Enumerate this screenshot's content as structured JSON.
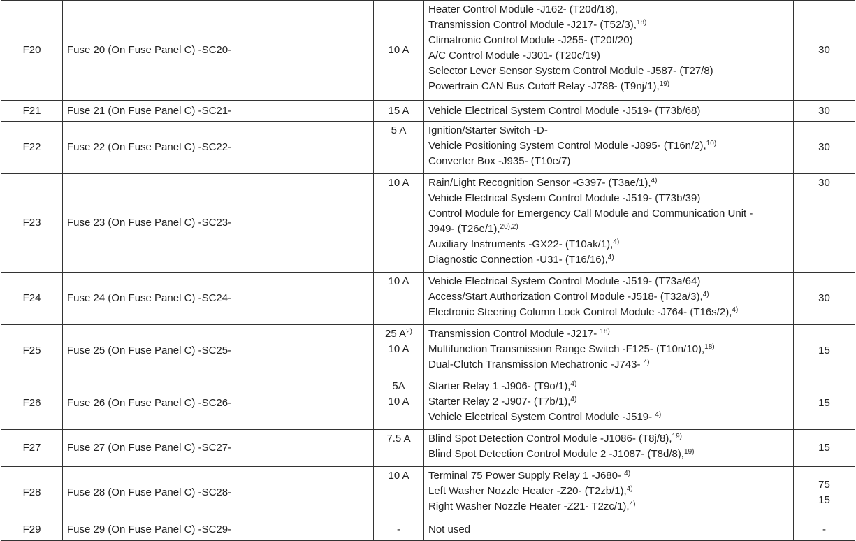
{
  "rows": [
    {
      "fuse": "F20",
      "name": "Fuse 20 (On Fuse Panel C) -SC20-",
      "amps": [
        {
          "text": "10 A"
        }
      ],
      "components": [
        {
          "text": "Heater Control Module -J162- (T20d/18),"
        },
        {
          "text": "Transmission Control Module -J217- (T52/3),",
          "sup": "18)"
        },
        {
          "text": "Climatronic Control Module -J255- (T20f/20)"
        },
        {
          "text": "A/C Control Module -J301- (T20c/19)"
        },
        {
          "text": "Selector Lever Sensor System Control Module -J587- (T27/8)"
        },
        {
          "text": "Powertrain CAN Bus Cutoff Relay -J788- (T9nj/1),",
          "sup": "19)"
        }
      ],
      "terminal": [
        "30"
      ]
    },
    {
      "fuse": "F21",
      "name": "Fuse 21 (On Fuse Panel C) -SC21-",
      "amps": [
        {
          "text": "15 A"
        }
      ],
      "components": [
        {
          "text": "Vehicle Electrical System Control Module -J519- (T73b/68)"
        }
      ],
      "terminal": [
        "30"
      ]
    },
    {
      "fuse": "F22",
      "name": "Fuse 22 (On Fuse Panel C) -SC22-",
      "amps": [
        {
          "text": "5 A"
        }
      ],
      "components": [
        {
          "text": "Ignition/Starter Switch -D-"
        },
        {
          "text": "Vehicle Positioning System Control Module -J895- (T16n/2),",
          "sup": "10)"
        },
        {
          "text": "Converter Box -J935- (T10e/7)"
        }
      ],
      "terminal": [
        "30"
      ]
    },
    {
      "fuse": "F23",
      "name": "Fuse 23 (On Fuse Panel C) -SC23-",
      "amps": [
        {
          "text": "10 A"
        }
      ],
      "components": [
        {
          "text": "Rain/Light Recognition Sensor -G397- (T3ae/1),",
          "sup": "4)"
        },
        {
          "text": "Vehicle Electrical System Control Module -J519- (T73b/39)"
        },
        {
          "text": "Control Module for Emergency Call Module and Communication Unit -"
        },
        {
          "text": "J949- (T26e/1),",
          "sup": "20),2)"
        },
        {
          "text": "Auxiliary Instruments -GX22- (T10ak/1),",
          "sup": "4)"
        },
        {
          "text": "Diagnostic Connection -U31- (T16/16),",
          "sup": "4)"
        }
      ],
      "terminal": [
        "30"
      ]
    },
    {
      "fuse": "F24",
      "name": "Fuse 24 (On Fuse Panel C) -SC24-",
      "amps": [
        {
          "text": "10 A"
        }
      ],
      "components": [
        {
          "text": "Vehicle Electrical System Control Module -J519- (T73a/64)"
        },
        {
          "text": "Access/Start Authorization Control Module -J518- (T32a/3),",
          "sup": "4)"
        },
        {
          "text": "Electronic Steering Column Lock Control Module -J764- (T16s/2),",
          "sup": "4)"
        }
      ],
      "terminal": [
        "30"
      ]
    },
    {
      "fuse": "F25",
      "name": "Fuse 25 (On Fuse Panel C) -SC25-",
      "amps": [
        {
          "text": "25 A",
          "sup": "2)"
        },
        {
          "text": "10 A"
        }
      ],
      "components": [
        {
          "text": "Transmission Control Module -J217- ",
          "sup": "18)"
        },
        {
          "text": "Multifunction Transmission Range Switch -F125- (T10n/10),",
          "sup": "18)"
        },
        {
          "text": "Dual-Clutch Transmission Mechatronic -J743- ",
          "sup": "4)"
        }
      ],
      "terminal": [
        "15"
      ]
    },
    {
      "fuse": "F26",
      "name": "Fuse 26 (On Fuse Panel C) -SC26-",
      "amps": [
        {
          "text": "5A"
        },
        {
          "text": "10 A"
        }
      ],
      "components": [
        {
          "text": "Starter Relay 1 -J906- (T9o/1),",
          "sup": "4)"
        },
        {
          "text": "Starter Relay 2 -J907- (T7b/1),",
          "sup": "4)"
        },
        {
          "text": "Vehicle Electrical System Control Module -J519- ",
          "sup": "4)"
        }
      ],
      "terminal": [
        "15"
      ]
    },
    {
      "fuse": "F27",
      "name": "Fuse 27 (On Fuse Panel C) -SC27-",
      "amps": [
        {
          "text": "7.5 A"
        }
      ],
      "components": [
        {
          "text": "Blind Spot Detection Control Module -J1086- (T8j/8),",
          "sup": "19)"
        },
        {
          "text": "Blind Spot Detection Control Module 2 -J1087- (T8d/8),",
          "sup": "19)"
        }
      ],
      "terminal": [
        "15"
      ]
    },
    {
      "fuse": "F28",
      "name": "Fuse 28 (On Fuse Panel C) -SC28-",
      "amps": [
        {
          "text": "10 A"
        }
      ],
      "components": [
        {
          "text": "Terminal 75 Power Supply Relay 1 -J680- ",
          "sup": "4)"
        },
        {
          "text": "Left Washer Nozzle Heater -Z20- (T2zb/1),",
          "sup": "4)"
        },
        {
          "text": "Right Washer Nozzle Heater -Z21- T2zc/1),",
          "sup": "4)"
        }
      ],
      "terminal": [
        "75",
        "15"
      ]
    },
    {
      "fuse": "F29",
      "name": "Fuse 29 (On Fuse Panel C) -SC29-",
      "amps": [
        {
          "text": "-"
        }
      ],
      "components": [
        {
          "text": "Not used"
        }
      ],
      "terminal": [
        "-"
      ]
    }
  ]
}
